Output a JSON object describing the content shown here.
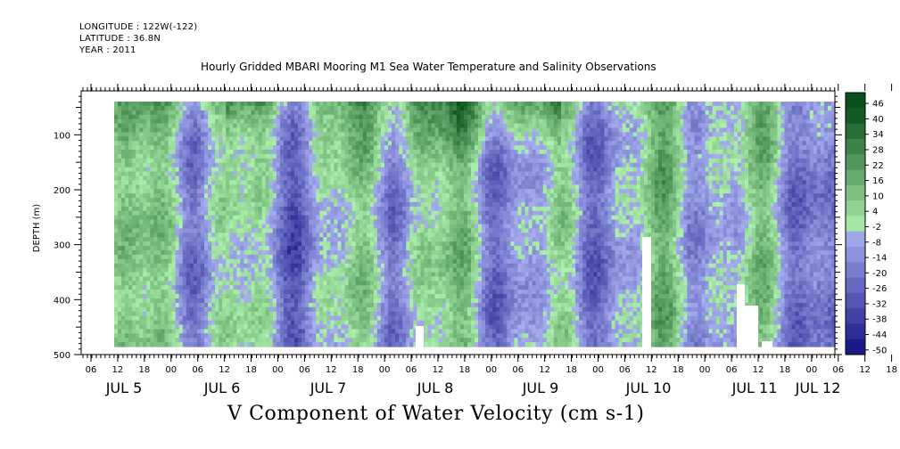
{
  "header": {
    "longitude": "LONGITUDE : 122W(-122)",
    "latitude": "LATITUDE : 36.8N",
    "year": "YEAR : 2011",
    "title": "Hourly Gridded MBARI Mooring M1 Sea Water Temperature and Salinity Observations"
  },
  "colors": {
    "negative_strong": "#10106a",
    "negative_light": "#a8aef0",
    "positive_light": "#aef0ae",
    "positive_strong": "#0a4f1a",
    "missing": "#ffffff"
  },
  "chart_data": {
    "type": "heatmap",
    "title": "V Component of Water Velocity (cm s-1)",
    "ylabel": "DEPTH (m)",
    "ylim": [
      500,
      20
    ],
    "y_inverted": true,
    "y_ticks": [
      100,
      200,
      300,
      400,
      500
    ],
    "x_hour_ticks": [
      "06",
      "12",
      "18",
      "00",
      "06",
      "12",
      "18",
      "00",
      "06",
      "12",
      "18",
      "00",
      "06",
      "12",
      "18",
      "00",
      "06",
      "12",
      "18",
      "00",
      "06",
      "12",
      "18",
      "00",
      "06",
      "12",
      "18",
      "00",
      "06",
      "12",
      "18",
      "00"
    ],
    "x_day_labels": [
      "JUL  5",
      "JUL  6",
      "JUL  7",
      "JUL  8",
      "JUL  9",
      "JUL 10",
      "JUL 11",
      "JUL 12"
    ],
    "colorbar": {
      "levels": [
        46,
        40,
        34,
        28,
        22,
        16,
        10,
        4,
        -2,
        -8,
        -14,
        -20,
        -26,
        -32,
        -38,
        -44,
        -50
      ],
      "min": -50,
      "max": 46
    }
  }
}
